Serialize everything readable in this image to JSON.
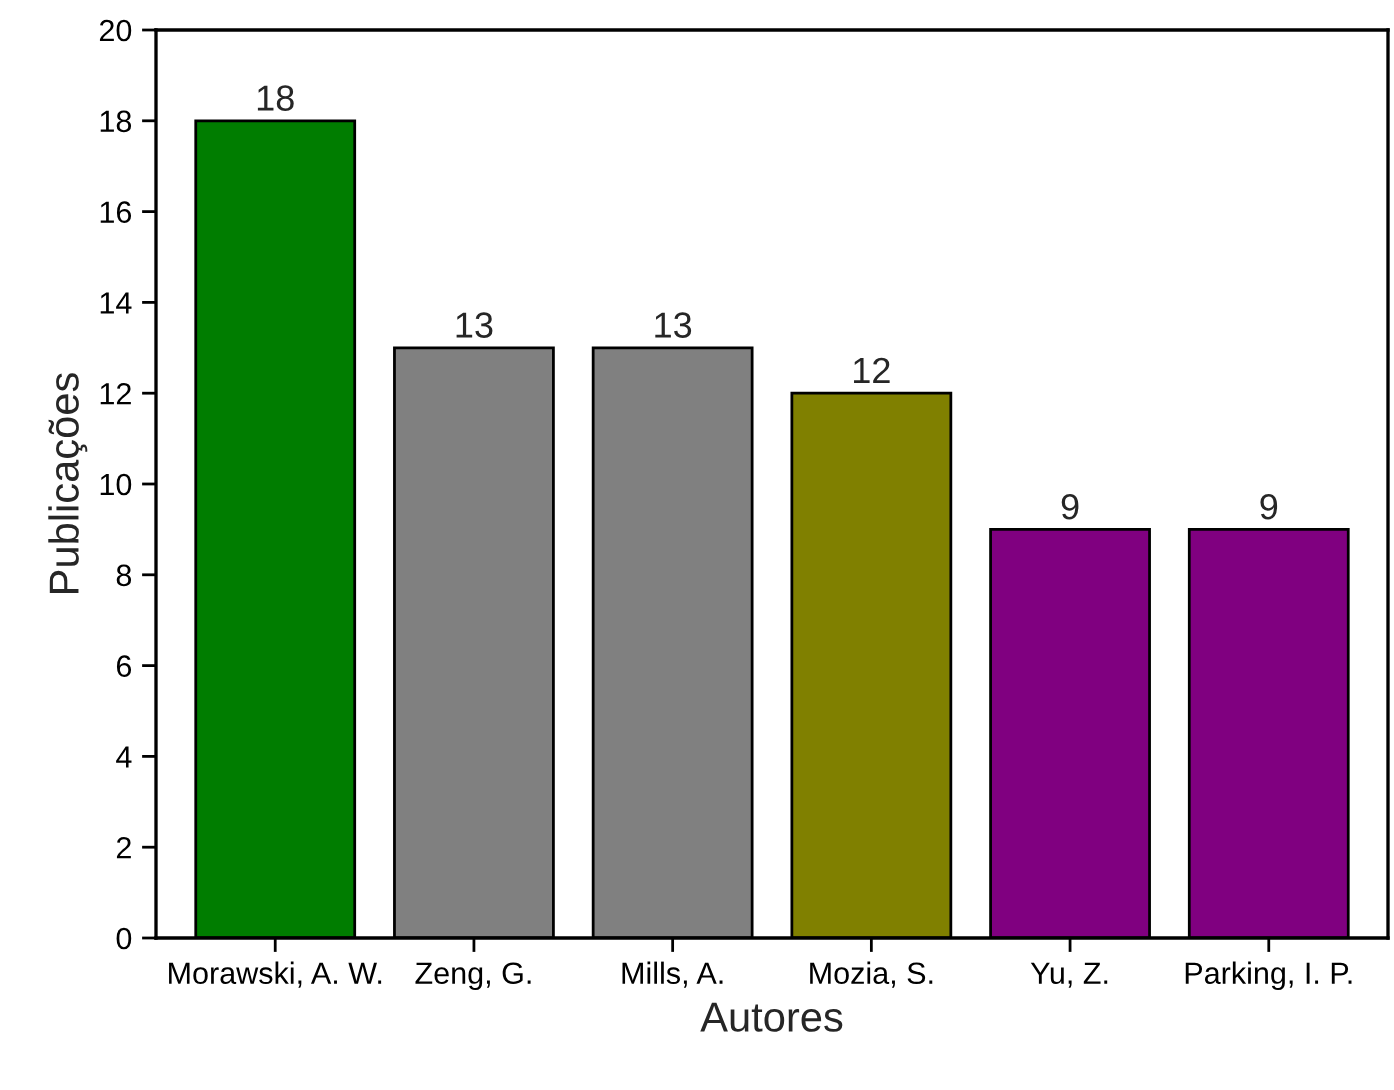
{
  "chart_data": {
    "type": "bar",
    "xlabel": "Autores",
    "ylabel": "Publicações",
    "categories": [
      "Morawski, A. W.",
      "Zeng, G.",
      "Mills, A.",
      "Mozia, S.",
      "Yu, Z.",
      "Parking, I. P."
    ],
    "values": [
      18,
      13,
      13,
      12,
      9,
      9
    ],
    "colors": [
      "#007d00",
      "#808080",
      "#808080",
      "#808000",
      "#800080",
      "#800080"
    ],
    "ylim": [
      0,
      20
    ],
    "yticks": [
      0,
      2,
      4,
      6,
      8,
      10,
      12,
      14,
      16,
      18,
      20
    ],
    "data_labels": true,
    "grid": false,
    "legend": false
  }
}
